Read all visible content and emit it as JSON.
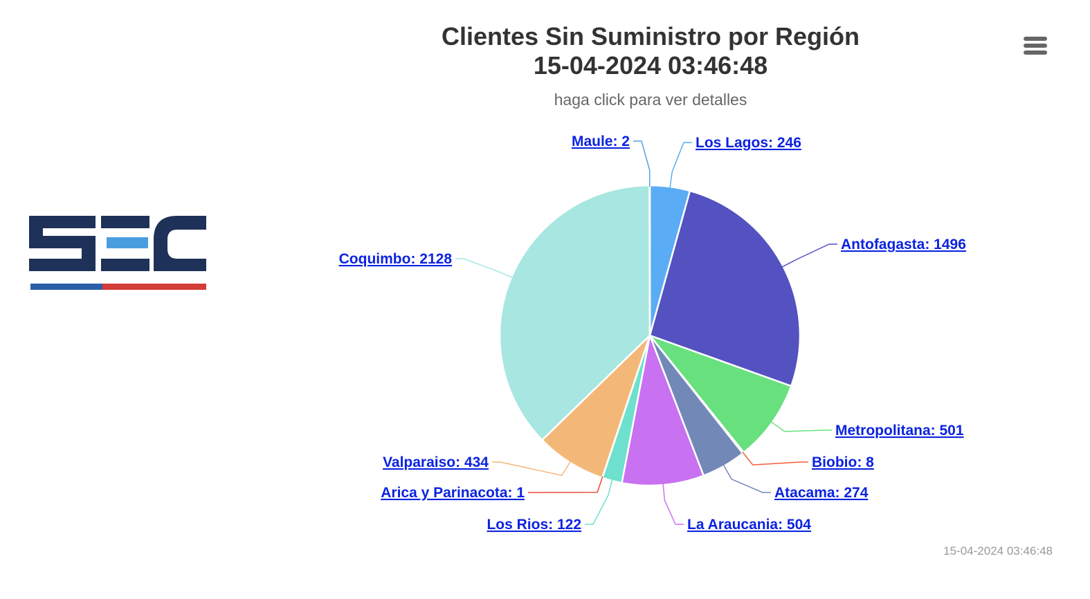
{
  "chart_data": {
    "type": "pie",
    "title": "Clientes Sin Suministro por Región",
    "title_datetime": "15-04-2024 03:46:48",
    "subtitle": "haga click para ver detalles",
    "slices": [
      {
        "name": "Los Lagos",
        "value": 246,
        "color": "#5aadf4"
      },
      {
        "name": "Antofagasta",
        "value": 1496,
        "color": "#5451c0"
      },
      {
        "name": "Metropolitana",
        "value": 501,
        "color": "#68e07e"
      },
      {
        "name": "Biobio",
        "value": 8,
        "color": "#f15c35"
      },
      {
        "name": "Atacama",
        "value": 274,
        "color": "#7289b8"
      },
      {
        "name": "La Araucania",
        "value": 504,
        "color": "#c872f2"
      },
      {
        "name": "Los Rios",
        "value": 122,
        "color": "#6ee0cd"
      },
      {
        "name": "Arica y Parinacota",
        "value": 1,
        "color": "#e84b3c"
      },
      {
        "name": "Valparaiso",
        "value": 434,
        "color": "#f3b878"
      },
      {
        "name": "Coquimbo",
        "value": 2128,
        "color": "#a7e6e1"
      },
      {
        "name": "Maule",
        "value": 2,
        "color": "#4fa2e8"
      }
    ],
    "legend": false
  },
  "credits": "15-04-2024 03:46:48",
  "menu": {
    "icon": "hamburger-menu-icon"
  },
  "logo": {
    "text": "SEC",
    "colors": {
      "dark": "#1e3158",
      "accent": "#4a9ee0",
      "stripe_blue": "#2a5ea8",
      "stripe_red": "#d33c37"
    }
  }
}
